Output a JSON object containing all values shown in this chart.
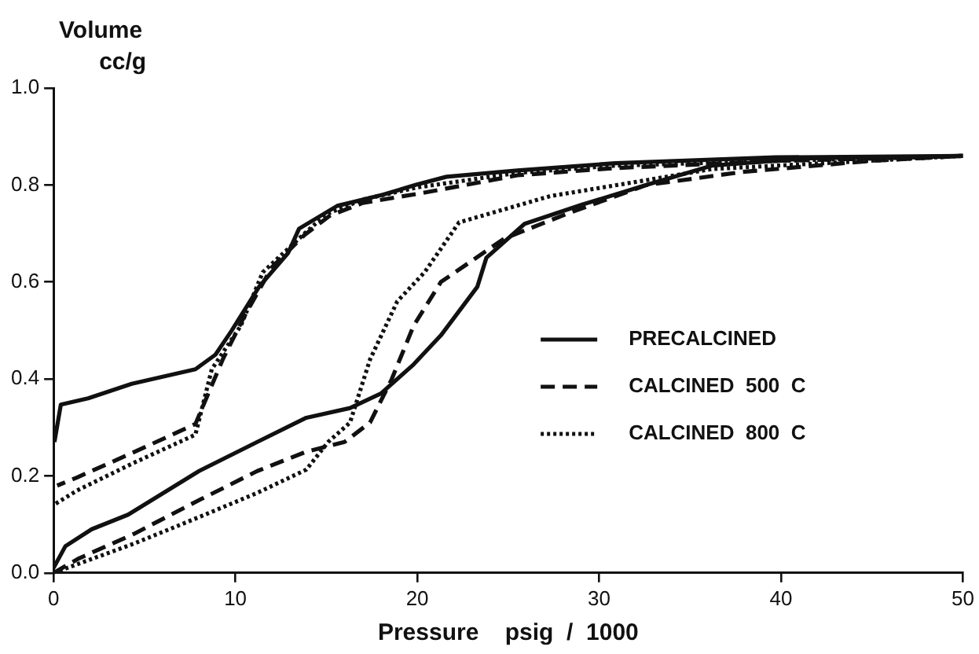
{
  "chart_data": {
    "type": "line",
    "xlabel": "Pressure    psig  /  1000",
    "ylabel": "Volume\ncc/g",
    "xlim": [
      0,
      50
    ],
    "xticks": [
      0,
      10,
      20,
      30,
      40,
      50
    ],
    "ylim": [
      0,
      1
    ],
    "yticks": [
      {
        "value": 0,
        "label": "0.0"
      },
      {
        "value": 0.2,
        "label": "0.2"
      },
      {
        "value": 0.4,
        "label": "0.4"
      },
      {
        "value": 0.6,
        "label": "0.6"
      },
      {
        "value": 0.8,
        "label": "0.8"
      },
      {
        "value": 1,
        "label": "1.0"
      }
    ],
    "grid": false,
    "legend": "right",
    "marker": "none",
    "series": [
      {
        "name": "PRECALCINED",
        "color": "#111111",
        "line_style": "solid",
        "x": [
          0,
          0.65,
          2.1,
          4.1,
          8,
          11.2,
          13.9,
          16.3,
          18,
          19.8,
          21.3,
          23.3,
          23.8,
          25.9,
          29.1,
          32.6,
          36.2,
          41.5,
          50,
          39.7,
          30.9,
          25.5,
          21.6,
          19.9,
          18.1,
          15.6,
          13.5,
          12.9,
          11.3,
          9.8,
          8.9,
          7.8,
          4.3,
          1.9,
          0.4,
          0.05
        ],
        "values": [
          0.01,
          0.055,
          0.09,
          0.12,
          0.21,
          0.27,
          0.32,
          0.34,
          0.37,
          0.43,
          0.49,
          0.59,
          0.65,
          0.72,
          0.76,
          0.8,
          0.84,
          0.855,
          0.86,
          0.857,
          0.845,
          0.83,
          0.817,
          0.8,
          0.78,
          0.757,
          0.71,
          0.66,
          0.59,
          0.5,
          0.45,
          0.42,
          0.39,
          0.36,
          0.347,
          0.27
        ]
      },
      {
        "name": "CALCINED  500  C",
        "color": "#111111",
        "line_style": "dashed",
        "x": [
          0,
          1.4,
          4.4,
          8,
          11.2,
          13.9,
          16,
          17.4,
          18.6,
          19.8,
          21.3,
          24.8,
          28.4,
          32.6,
          37.9,
          45,
          50,
          40,
          30.9,
          25.5,
          20.2,
          17,
          15.2,
          13.8,
          12,
          10.5,
          9.3,
          7.8,
          4.3,
          1.3,
          0.2
        ],
        "values": [
          0,
          0.03,
          0.08,
          0.15,
          0.21,
          0.25,
          0.27,
          0.31,
          0.4,
          0.51,
          0.6,
          0.69,
          0.743,
          0.8,
          0.827,
          0.85,
          0.86,
          0.85,
          0.835,
          0.82,
          0.783,
          0.763,
          0.737,
          0.697,
          0.63,
          0.53,
          0.44,
          0.307,
          0.247,
          0.197,
          0.18
        ]
      },
      {
        "name": "CALCINED  800  C",
        "color": "#111111",
        "line_style": "dotted",
        "x": [
          0,
          4.4,
          8,
          11.2,
          13.9,
          15.1,
          16.3,
          17.4,
          18.9,
          20.4,
          22.3,
          27.3,
          32.6,
          36.2,
          50,
          40,
          30.9,
          25.5,
          20,
          17,
          15,
          13.8,
          11.5,
          10.3,
          8.7,
          7.8,
          4.3,
          1.3,
          0
        ],
        "values": [
          0,
          0.06,
          0.115,
          0.165,
          0.213,
          0.27,
          0.31,
          0.44,
          0.56,
          0.62,
          0.723,
          0.777,
          0.81,
          0.833,
          0.86,
          0.85,
          0.84,
          0.825,
          0.795,
          0.77,
          0.74,
          0.7,
          0.62,
          0.51,
          0.42,
          0.285,
          0.225,
          0.17,
          0.14
        ]
      }
    ]
  }
}
